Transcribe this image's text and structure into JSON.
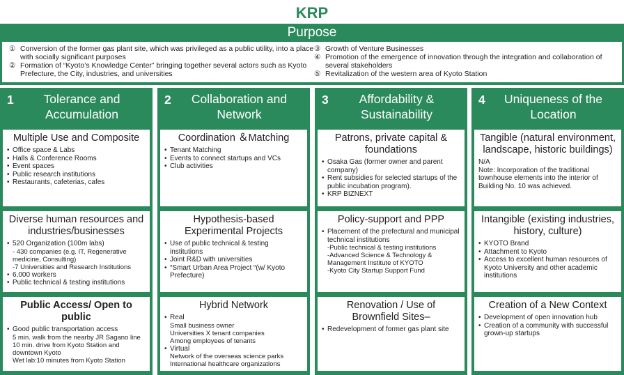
{
  "title": "KRP",
  "purpose": {
    "heading": "Purpose",
    "left": [
      {
        "marker": "①",
        "text": "Conversion of the former gas plant site, which was privileged as a public utility, into a place with socially significant purposes"
      },
      {
        "marker": "②",
        "text": "Formation of “Kyoto’s Knowledge Center” bringing together several actors such as Kyoto Prefecture, the City, industries, and universities"
      }
    ],
    "right": [
      {
        "marker": "③",
        "text": "Growth of Venture Businesses"
      },
      {
        "marker": "④",
        "text": "Promotion of the emergence of innovation through the integration and collaboration of several stakeholders"
      },
      {
        "marker": "⑤",
        "text": "Revitalization of the western area of Kyoto Station"
      }
    ]
  },
  "columns": [
    {
      "number": "1",
      "heading": "Tolerance and Accumulation",
      "boxes": [
        {
          "title": "Multiple Use and Composite",
          "items": [
            {
              "text": "Office space & Labs"
            },
            {
              "text": "Halls & Conference Rooms"
            },
            {
              "text": "Event spaces"
            },
            {
              "text": "Public research institutions"
            },
            {
              "text": "Restaurants, cafeterias, cafes"
            }
          ]
        },
        {
          "title": "Diverse human resources and industries/businesses",
          "items": [
            {
              "text": "520 Organization (100m labs)",
              "sub": [
                "- 430 companies (e.g. IT, Regenerative medicine, Consulting)",
                "-7 Universities and Research Institutions"
              ]
            },
            {
              "text": "6,000 workers"
            },
            {
              "text": "Public technical & testing institutions"
            }
          ]
        },
        {
          "title": "Public Access/ Open to public",
          "bold": true,
          "items": [
            {
              "text": "Good public transportation access",
              "sub": [
                "5 min. walk from the nearby JR Sagano line",
                "10 min. drive from Kyoto Station and downtown Kyoto",
                "Wet lab:10 minutes from Kyoto Station"
              ]
            }
          ]
        }
      ]
    },
    {
      "number": "2",
      "heading": "Collaboration and Network",
      "boxes": [
        {
          "title": "Coordination ＆Matching",
          "items": [
            {
              "text": "Tenant Matching"
            },
            {
              "text": "Events to connect startups and VCs"
            },
            {
              "text": "Club activities"
            }
          ]
        },
        {
          "title": "Hypothesis-based Experimental Projects",
          "items": [
            {
              "text": "Use of public technical & testing institutions"
            },
            {
              "text": "Joint R&D with universities"
            },
            {
              "text": "“Smart Urban Area Project “(w/ Kyoto Prefecture)"
            }
          ]
        },
        {
          "title": "Hybrid Network",
          "items": [
            {
              "text": "Real",
              "sub": [
                "Small business owner",
                "Universities X tenant companies",
                "Among employees of tenants"
              ]
            },
            {
              "text": "Virtual",
              "sub": [
                "Network of the overseas science parks",
                "International healthcare organizations"
              ]
            }
          ]
        }
      ]
    },
    {
      "number": "3",
      "heading": "Affordability & Sustainability",
      "boxes": [
        {
          "title": "Patrons, private capital & foundations",
          "items": [
            {
              "text": "Osaka Gas (former owner and parent company)"
            },
            {
              "text": "Rent subsidies for selected startups of the public incubation program)."
            },
            {
              "text": "KRP BIZNEXT"
            }
          ]
        },
        {
          "title": "Policy-support and PPP",
          "items": [
            {
              "text": "Placement of the prefectural and municipal technical institutions",
              "sub": [
                "-Public technical & testing institutions",
                "-Advanced Science & Technology & Management Institute of KYOTO",
                "-Kyoto City Startup Support Fund"
              ]
            }
          ]
        },
        {
          "title": "Renovation / Use of Brownfield Sites–",
          "items": [
            {
              "text": "Redevelopment of former gas plant site"
            }
          ]
        }
      ]
    },
    {
      "number": "4",
      "heading": "Uniqueness of the Location",
      "boxes": [
        {
          "title": "Tangible (natural environment, landscape, historic buildings)",
          "notes": [
            "N/A",
            "Note: Incorporation of the traditional townhouse elements into the interior of Building No. 10 was achieved."
          ]
        },
        {
          "title": "Intangible (existing industries, history, culture)",
          "items": [
            {
              "text": "KYOTO Brand"
            },
            {
              "text": "Attachment to Kyoto"
            },
            {
              "text": "Access to excellent human resources of Kyoto University and other academic institutions"
            }
          ]
        },
        {
          "title": "Creation of a New Context",
          "items": [
            {
              "text": "Development of open innovation hub"
            },
            {
              "text": "Creation of a community with successful grown-up startups"
            }
          ]
        }
      ]
    }
  ]
}
